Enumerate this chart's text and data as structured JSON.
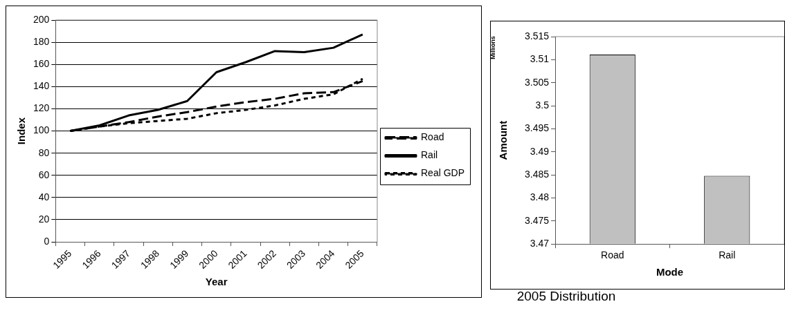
{
  "chart_data": [
    {
      "type": "line",
      "xlabel": "Year",
      "ylabel": "Index",
      "categories": [
        "1995",
        "1996",
        "1997",
        "1998",
        "1999",
        "2000",
        "2001",
        "2002",
        "2003",
        "2004",
        "2005"
      ],
      "series": [
        {
          "name": "Road",
          "color": "#000000",
          "line_style": "dashed",
          "values": [
            100,
            104,
            108,
            113,
            117,
            122,
            126,
            129,
            134,
            135,
            145
          ]
        },
        {
          "name": "Rail",
          "color": "#000000",
          "line_style": "solid",
          "values": [
            100,
            105,
            114,
            119,
            127,
            153,
            162,
            172,
            171,
            175,
            187
          ]
        },
        {
          "name": "Real GDP",
          "color": "#000000",
          "line_style": "dotted",
          "values": [
            100,
            104,
            107,
            109,
            111,
            116,
            119,
            123,
            129,
            133,
            147
          ]
        }
      ],
      "ylim": [
        0,
        200
      ],
      "yticks": [
        0,
        20,
        40,
        60,
        80,
        100,
        120,
        140,
        160,
        180,
        200
      ],
      "grid": "y",
      "legend": "right",
      "marker": "none"
    },
    {
      "type": "bar",
      "title": "2005 Distribution",
      "xlabel": "Mode",
      "ylabel": "Amount",
      "categories": [
        "Road",
        "Rail"
      ],
      "values": [
        3.5111,
        3.4848
      ],
      "color": "#c0c0c0",
      "ylim": [
        3.47,
        3.515
      ],
      "yticks": [
        3.47,
        3.475,
        3.48,
        3.485,
        3.49,
        3.495,
        3.5,
        3.505,
        3.51,
        3.515
      ],
      "grid": false,
      "annotations": [
        "Millions"
      ]
    }
  ]
}
